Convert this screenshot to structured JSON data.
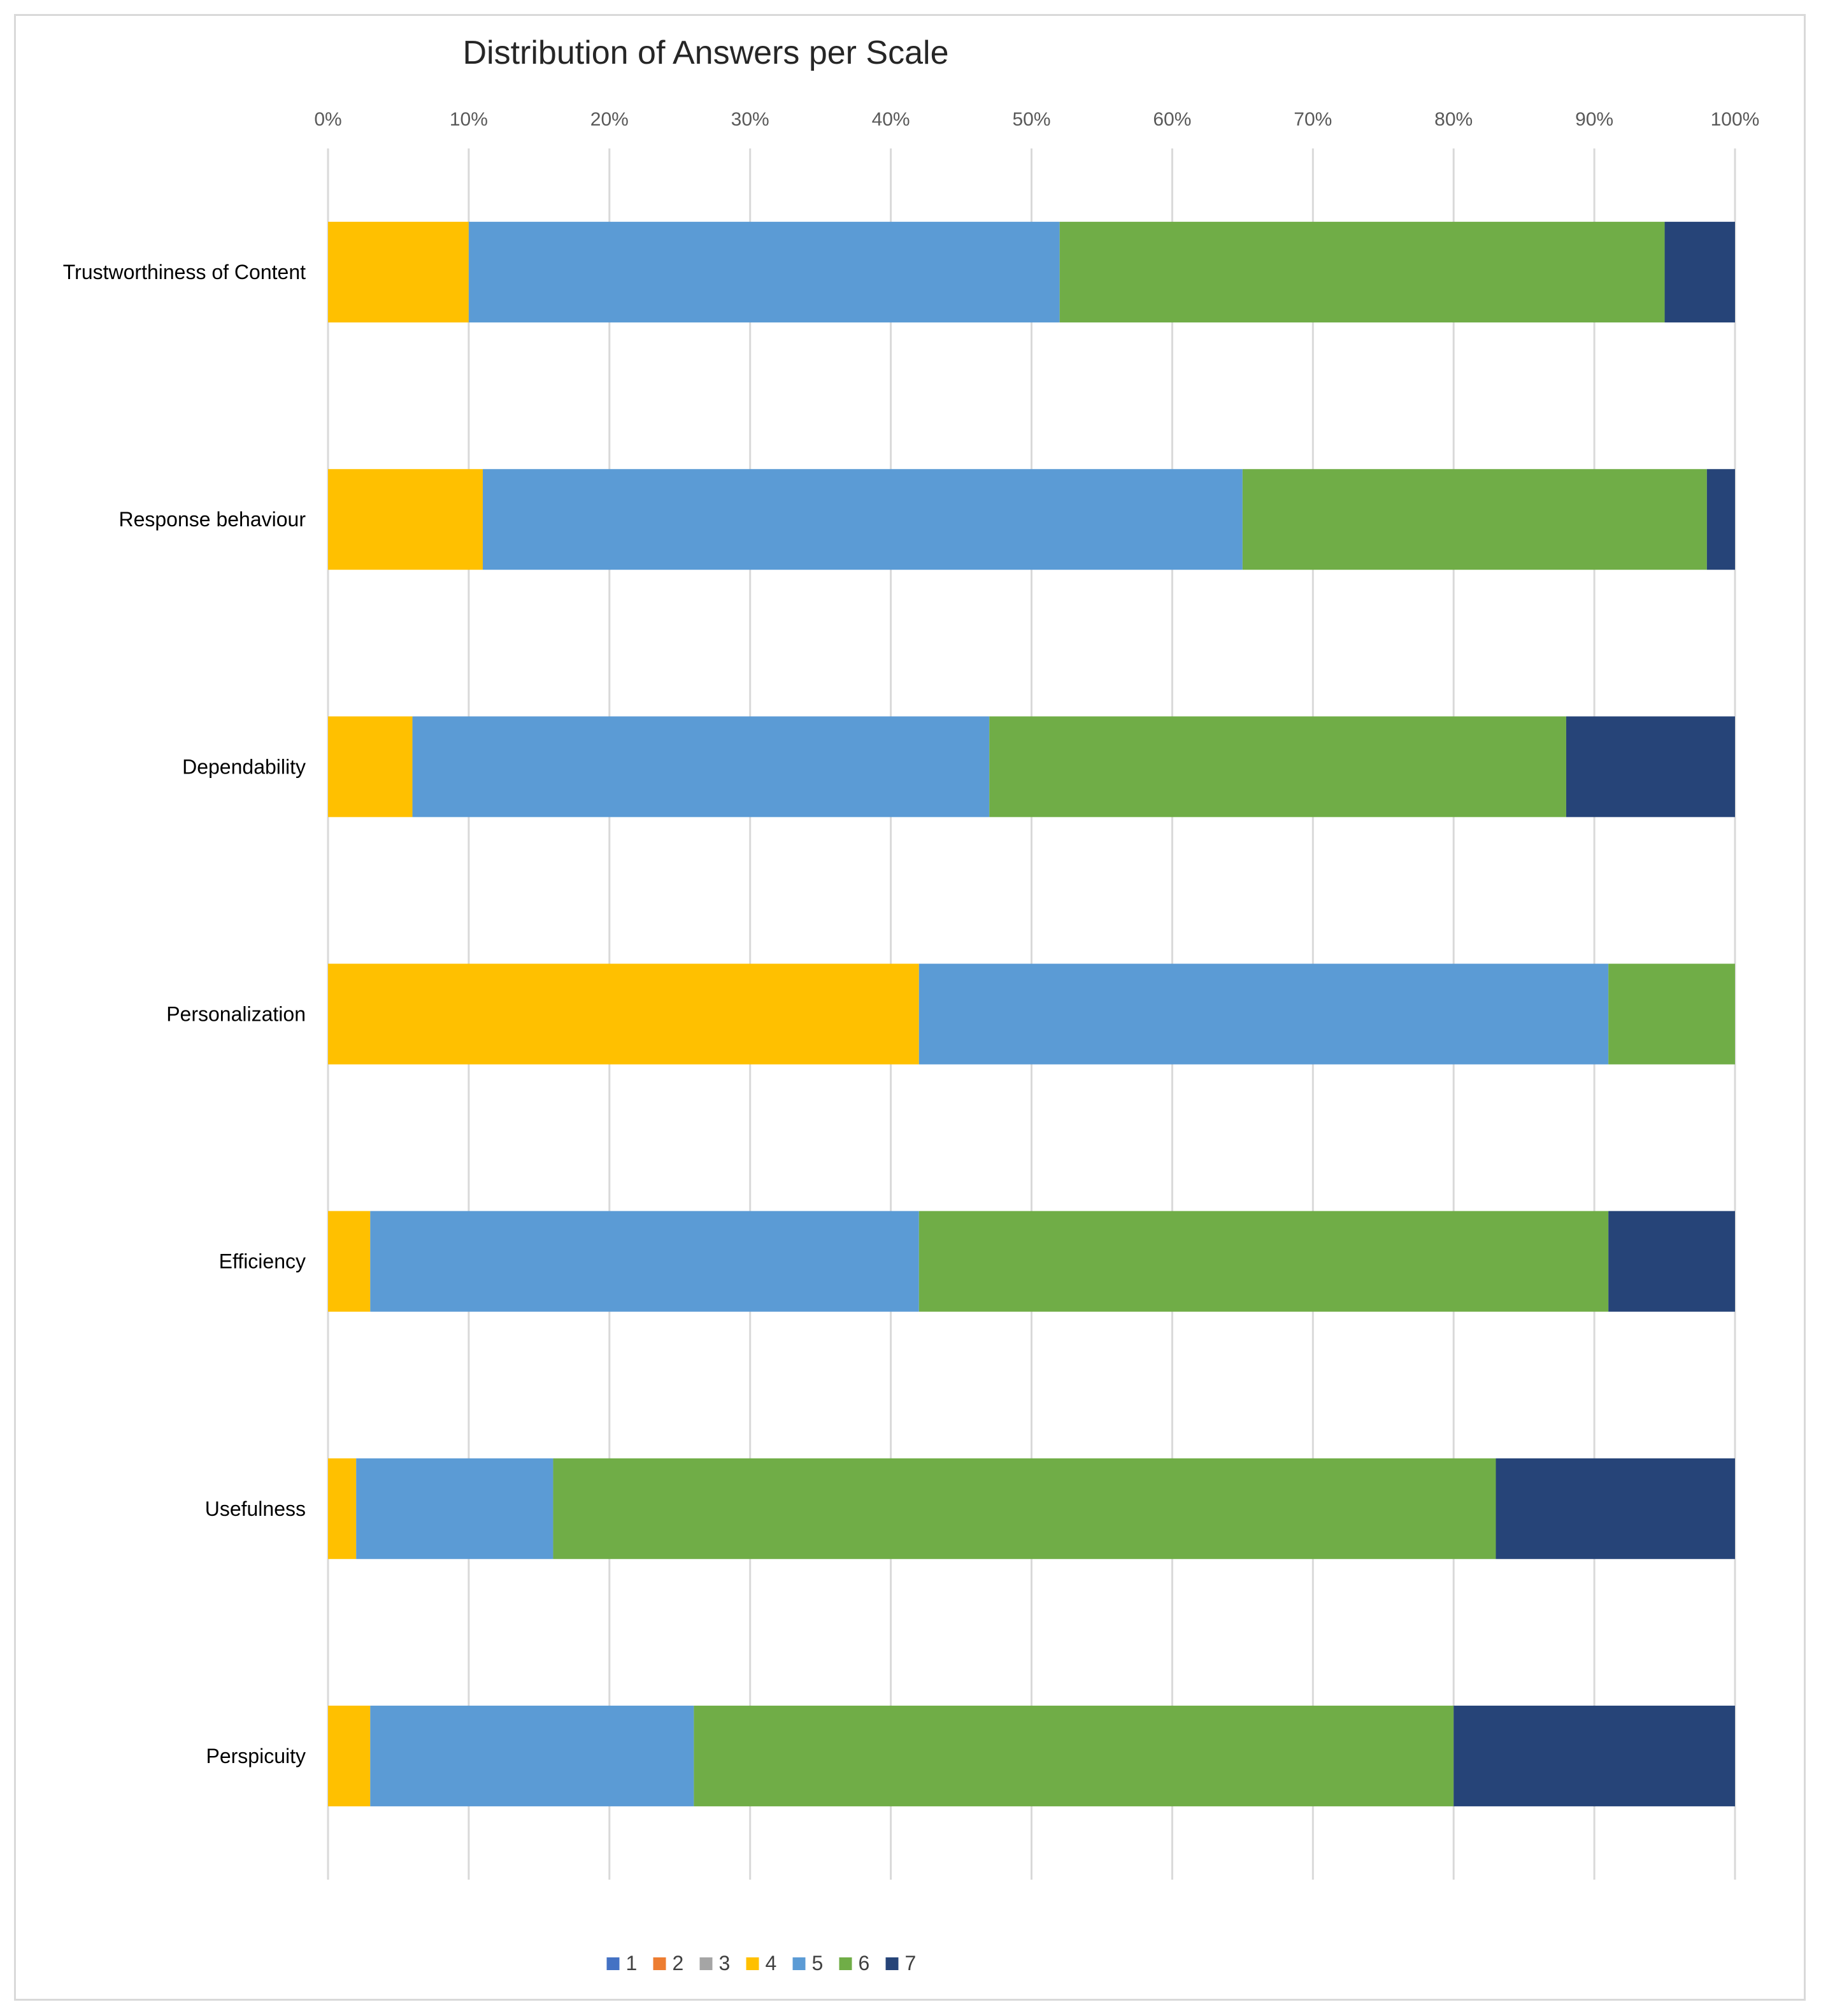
{
  "chart_data": {
    "type": "bar",
    "orientation": "horizontal",
    "stacked": "percent",
    "title": "Distribution of Answers per Scale",
    "xlabel": "",
    "ylabel": "",
    "xlim": [
      0,
      100
    ],
    "x_ticks": [
      "0%",
      "10%",
      "20%",
      "30%",
      "40%",
      "50%",
      "60%",
      "70%",
      "80%",
      "90%",
      "100%"
    ],
    "x_axis_position": "top",
    "grid": true,
    "legend_position": "bottom",
    "categories": [
      "Trustworthiness of Content",
      "Response behaviour",
      "Dependability",
      "Personalization",
      "Efficiency",
      "Usefulness",
      "Perspicuity"
    ],
    "series": [
      {
        "name": "1",
        "color": "#4472C4",
        "values": [
          0,
          0,
          0,
          0,
          0,
          0,
          0
        ]
      },
      {
        "name": "2",
        "color": "#ED7D31",
        "values": [
          0,
          0,
          0,
          0,
          0,
          0,
          0
        ]
      },
      {
        "name": "3",
        "color": "#A5A5A5",
        "values": [
          0,
          0,
          0,
          0,
          0,
          0,
          0
        ]
      },
      {
        "name": "4",
        "color": "#FFC000",
        "values": [
          10,
          11,
          6,
          42,
          3,
          2,
          3
        ]
      },
      {
        "name": "5",
        "color": "#5B9BD5",
        "values": [
          42,
          54,
          41,
          49,
          39,
          14,
          23
        ]
      },
      {
        "name": "6",
        "color": "#70AD47",
        "values": [
          43,
          33,
          41,
          9,
          49,
          67,
          54
        ]
      },
      {
        "name": "7",
        "color": "#264478",
        "values": [
          5,
          2,
          12,
          0,
          9,
          17,
          20
        ]
      }
    ]
  }
}
